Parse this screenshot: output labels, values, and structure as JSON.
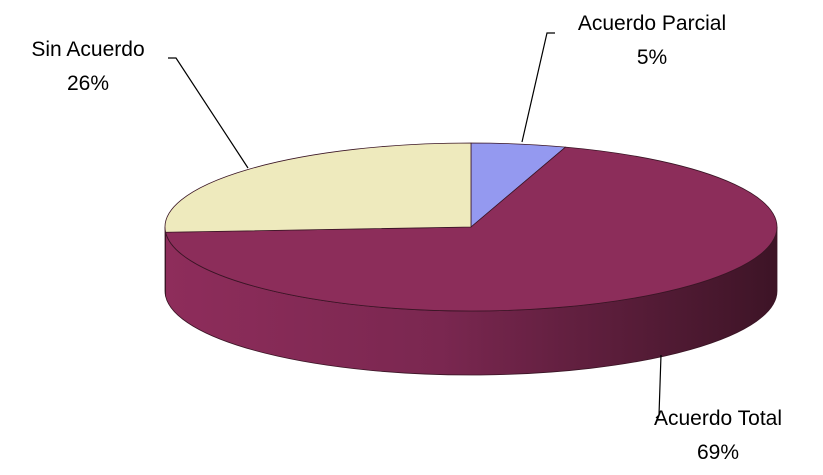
{
  "chart_data": {
    "type": "pie",
    "style": "3d",
    "legend": "none",
    "slices": [
      {
        "label": "Acuerdo Parcial",
        "percent_label": "5%",
        "value": 5,
        "color": "#9499F0"
      },
      {
        "label": "Acuerdo Total",
        "percent_label": "69%",
        "value": 69,
        "color": "#8C2D5A"
      },
      {
        "label": "Sin Acuerdo",
        "percent_label": "26%",
        "value": 26,
        "color": "#EEEABD"
      }
    ]
  }
}
